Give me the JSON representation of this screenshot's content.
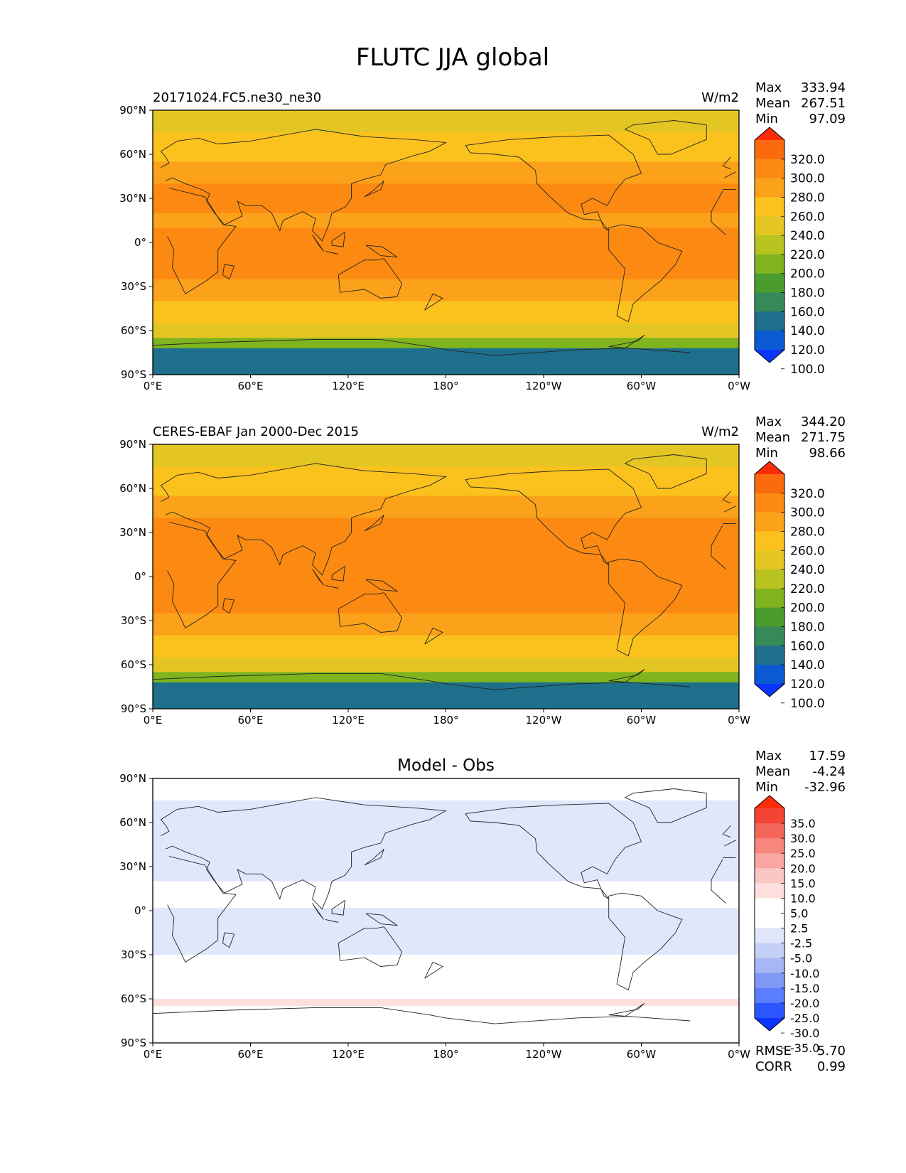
{
  "figure": {
    "title": "FLUTC JJA global"
  },
  "lon_ticks": [
    "0°E",
    "60°E",
    "120°E",
    "180°",
    "120°W",
    "60°W",
    "0°W"
  ],
  "lat_ticks": [
    "90°N",
    "60°N",
    "30°N",
    "0°",
    "30°S",
    "60°S",
    "90°S"
  ],
  "stat_labels": {
    "max": "Max",
    "mean": "Mean",
    "min": "Min",
    "rmse": "RMSE",
    "corr": "CORR"
  },
  "palette": {
    "abs": [
      "#0a35ff",
      "#0a5ad3",
      "#1e6f8c",
      "#368a58",
      "#4b9c2e",
      "#7fb41f",
      "#b9c31f",
      "#e3c623",
      "#fbc21e",
      "#fca21a",
      "#fc8a12",
      "#fb6a0e",
      "#fc2c0b"
    ],
    "diff": [
      "#0a35ff",
      "#2d55ff",
      "#5b7dff",
      "#8099f7",
      "#a6b7f5",
      "#c5d0f7",
      "#e1e7fb",
      "#ffffff",
      "#ffffff",
      "#fde0de",
      "#fbc7c3",
      "#f9a7a0",
      "#f7877d",
      "#f5665a",
      "#f34436",
      "#fc2c0b"
    ]
  },
  "chart_data": [
    {
      "type": "heatmap",
      "title": "20171024.FC5.ne30_ne30",
      "units": "W/m2",
      "stats": {
        "max": "333.94",
        "mean": "267.51",
        "min": "97.09"
      },
      "colorbar_levels": [
        "320.0",
        "300.0",
        "280.0",
        "260.0",
        "240.0",
        "220.0",
        "200.0",
        "180.0",
        "160.0",
        "140.0",
        "120.0",
        "100.0"
      ],
      "lat_bands": [
        {
          "lat_range": [
            90,
            75
          ],
          "value": 225
        },
        {
          "lat_range": [
            75,
            55
          ],
          "value": 245
        },
        {
          "lat_range": [
            55,
            40
          ],
          "value": 262
        },
        {
          "lat_range": [
            40,
            20
          ],
          "value": 285
        },
        {
          "lat_range": [
            20,
            10
          ],
          "value": 275
        },
        {
          "lat_range": [
            10,
            -25
          ],
          "value": 290
        },
        {
          "lat_range": [
            -25,
            -40
          ],
          "value": 270
        },
        {
          "lat_range": [
            -40,
            -55
          ],
          "value": 240
        },
        {
          "lat_range": [
            -55,
            -65
          ],
          "value": 222
        },
        {
          "lat_range": [
            -65,
            -72
          ],
          "value": 190
        },
        {
          "lat_range": [
            -72,
            -90
          ],
          "value": 120
        }
      ]
    },
    {
      "type": "heatmap",
      "title": "CERES-EBAF Jan 2000-Dec 2015",
      "units": "W/m2",
      "stats": {
        "max": "344.20",
        "mean": "271.75",
        "min": "98.66"
      },
      "colorbar_levels": [
        "320.0",
        "300.0",
        "280.0",
        "260.0",
        "240.0",
        "220.0",
        "200.0",
        "180.0",
        "160.0",
        "140.0",
        "120.0",
        "100.0"
      ],
      "lat_bands": [
        {
          "lat_range": [
            90,
            75
          ],
          "value": 225
        },
        {
          "lat_range": [
            75,
            55
          ],
          "value": 250
        },
        {
          "lat_range": [
            55,
            40
          ],
          "value": 268
        },
        {
          "lat_range": [
            40,
            20
          ],
          "value": 290
        },
        {
          "lat_range": [
            20,
            10
          ],
          "value": 282
        },
        {
          "lat_range": [
            10,
            -25
          ],
          "value": 292
        },
        {
          "lat_range": [
            -25,
            -40
          ],
          "value": 272
        },
        {
          "lat_range": [
            -40,
            -55
          ],
          "value": 245
        },
        {
          "lat_range": [
            -55,
            -65
          ],
          "value": 225
        },
        {
          "lat_range": [
            -65,
            -72
          ],
          "value": 185
        },
        {
          "lat_range": [
            -72,
            -90
          ],
          "value": 125
        }
      ]
    },
    {
      "type": "heatmap",
      "title": "Model - Obs",
      "units": "",
      "stats": {
        "max": "17.59",
        "mean": "-4.24",
        "min": "-32.96",
        "rmse": "5.70",
        "corr": "0.99"
      },
      "colorbar_levels": [
        "35.0",
        "30.0",
        "25.0",
        "20.0",
        "15.0",
        "10.0",
        "5.0",
        "2.5",
        "-2.5",
        "-5.0",
        "-10.0",
        "-15.0",
        "-20.0",
        "-25.0",
        "-30.0",
        "-35.0"
      ],
      "lat_bands": [
        {
          "lat_range": [
            90,
            75
          ],
          "value": 0
        },
        {
          "lat_range": [
            75,
            40
          ],
          "value": -6
        },
        {
          "lat_range": [
            40,
            20
          ],
          "value": -8
        },
        {
          "lat_range": [
            20,
            10
          ],
          "value": -4
        },
        {
          "lat_range": [
            10,
            2
          ],
          "value": 1
        },
        {
          "lat_range": [
            2,
            -30
          ],
          "value": -6
        },
        {
          "lat_range": [
            -30,
            -50
          ],
          "value": -5
        },
        {
          "lat_range": [
            -50,
            -60
          ],
          "value": -3
        },
        {
          "lat_range": [
            -60,
            -65
          ],
          "value": 3
        },
        {
          "lat_range": [
            -65,
            -90
          ],
          "value": 2
        }
      ]
    }
  ]
}
